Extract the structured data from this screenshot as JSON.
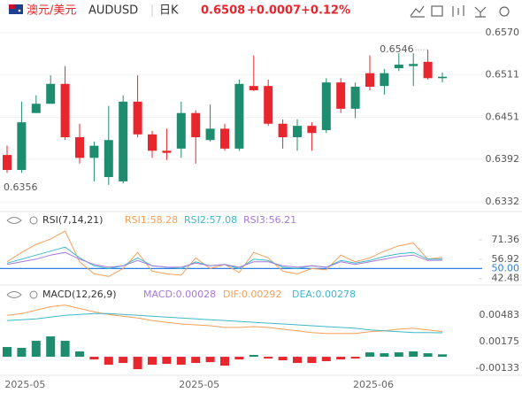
{
  "header": {
    "pair_cn": "澳元/美元",
    "pair": "AUDUSD",
    "period": "日K",
    "price": "0.6508",
    "change": "+0.0007",
    "change_pct": "+0.12%"
  },
  "chart_data": [
    {
      "type": "candlestick",
      "up_color": "#1e8c6e",
      "down_color": "#e8262d",
      "categories": [
        null,
        "2025-05",
        null,
        null,
        null,
        null,
        null,
        null,
        null,
        null,
        null,
        null,
        null,
        "2025-05",
        null,
        null,
        null,
        null,
        null,
        null,
        null,
        null,
        null,
        null,
        null,
        "2025-06",
        null,
        null,
        null,
        null,
        null
      ],
      "candles": [
        {
          "open": 0.6398,
          "high": 0.6411,
          "low": 0.6373,
          "close": 0.6377
        },
        {
          "open": 0.6377,
          "high": 0.6473,
          "low": 0.6373,
          "close": 0.6444
        },
        {
          "open": 0.6457,
          "high": 0.6482,
          "low": 0.6457,
          "close": 0.647
        },
        {
          "open": 0.647,
          "high": 0.651,
          "low": 0.647,
          "close": 0.6498
        },
        {
          "open": 0.6498,
          "high": 0.6523,
          "low": 0.6419,
          "close": 0.6423
        },
        {
          "open": 0.6423,
          "high": 0.6442,
          "low": 0.6386,
          "close": 0.6394
        },
        {
          "open": 0.6394,
          "high": 0.6417,
          "low": 0.6361,
          "close": 0.6411
        },
        {
          "open": 0.6367,
          "high": 0.6467,
          "low": 0.6356,
          "close": 0.6419
        },
        {
          "open": 0.6361,
          "high": 0.6482,
          "low": 0.6358,
          "close": 0.6473
        },
        {
          "open": 0.6473,
          "high": 0.651,
          "low": 0.6423,
          "close": 0.6427
        },
        {
          "open": 0.6427,
          "high": 0.6432,
          "low": 0.6394,
          "close": 0.6404
        },
        {
          "open": 0.6404,
          "high": 0.6435,
          "low": 0.6391,
          "close": 0.6401
        },
        {
          "open": 0.6407,
          "high": 0.6473,
          "low": 0.6394,
          "close": 0.6457
        },
        {
          "open": 0.6457,
          "high": 0.6461,
          "low": 0.6386,
          "close": 0.6423
        },
        {
          "open": 0.6419,
          "high": 0.6469,
          "low": 0.6417,
          "close": 0.6435
        },
        {
          "open": 0.6435,
          "high": 0.6442,
          "low": 0.6404,
          "close": 0.6407
        },
        {
          "open": 0.6407,
          "high": 0.6504,
          "low": 0.6404,
          "close": 0.6498
        },
        {
          "open": 0.6495,
          "high": 0.6538,
          "low": 0.6488,
          "close": 0.6489
        },
        {
          "open": 0.6495,
          "high": 0.6504,
          "low": 0.6439,
          "close": 0.6442
        },
        {
          "open": 0.6442,
          "high": 0.6448,
          "low": 0.6407,
          "close": 0.6423
        },
        {
          "open": 0.6423,
          "high": 0.6448,
          "low": 0.6404,
          "close": 0.6439
        },
        {
          "open": 0.6439,
          "high": 0.6444,
          "low": 0.6404,
          "close": 0.6429
        },
        {
          "open": 0.6433,
          "high": 0.6506,
          "low": 0.6429,
          "close": 0.65
        },
        {
          "open": 0.65,
          "high": 0.6506,
          "low": 0.6457,
          "close": 0.6463
        },
        {
          "open": 0.6463,
          "high": 0.65,
          "low": 0.645,
          "close": 0.6494
        },
        {
          "open": 0.6513,
          "high": 0.6538,
          "low": 0.6489,
          "close": 0.6494
        },
        {
          "open": 0.6495,
          "high": 0.6519,
          "low": 0.6483,
          "close": 0.6513
        },
        {
          "open": 0.652,
          "high": 0.6541,
          "low": 0.6516,
          "close": 0.6525
        },
        {
          "open": 0.6523,
          "high": 0.6541,
          "low": 0.6495,
          "close": 0.6526
        },
        {
          "open": 0.6529,
          "high": 0.6546,
          "low": 0.6504,
          "close": 0.6506
        },
        {
          "open": 0.6506,
          "high": 0.6514,
          "low": 0.65,
          "close": 0.6508
        }
      ],
      "ylim": [
        0.6321,
        0.6591
      ],
      "yticks": [
        {
          "value": 0.657,
          "label": "0.6570"
        },
        0.6511,
        0.6451,
        0.6392,
        0.6332
      ],
      "high_label": "0.6546",
      "low_label": "0.6356",
      "grid": true
    },
    {
      "type": "line",
      "title": "RSI(7,14,21)",
      "ylim": [
        39,
        80
      ],
      "yticks": [
        71.36,
        56.92,
        {
          "value": 50,
          "label": "50.00"
        },
        42.48
      ],
      "reference_line": 50,
      "reference_color": "#2f7de1",
      "series": [
        {
          "name": "RSI1:58.28",
          "color": "#f5a05a",
          "values": [
            55,
            62,
            68,
            72,
            78,
            55,
            46,
            44,
            50,
            62,
            48,
            46,
            45,
            58,
            50,
            53,
            47,
            62,
            58,
            48,
            46,
            50,
            49,
            60,
            55,
            58,
            63,
            67,
            69,
            57,
            58.28
          ]
        },
        {
          "name": "RSI2:57.08",
          "color": "#3fb8c7",
          "values": [
            54,
            57,
            60,
            63,
            66,
            58,
            52,
            50,
            52,
            58,
            52,
            51,
            50,
            55,
            52,
            53,
            50,
            57,
            56,
            51,
            50,
            52,
            51,
            56,
            54,
            56,
            59,
            61,
            62,
            57,
            57.08
          ]
        },
        {
          "name": "RSI3:56.21",
          "color": "#a77ad9",
          "values": [
            53,
            55,
            57,
            60,
            62,
            57,
            53,
            51,
            52,
            56,
            52,
            51,
            51,
            54,
            52,
            53,
            51,
            55,
            55,
            52,
            51,
            52,
            51,
            55,
            53,
            55,
            57,
            59,
            60,
            56,
            56.21
          ]
        }
      ]
    },
    {
      "type": "macd",
      "title": "MACD(12,26,9)",
      "ylim": [
        -0.00225,
        0.00647
      ],
      "yticks": [
        0.00483,
        0.00175,
        -0.00133
      ],
      "up_color": "#1e8c6e",
      "down_color": "#e8262d",
      "series": [
        {
          "name": "MACD:0.00028",
          "color": "#a77ad9",
          "kind": "bar",
          "values": [
            0.00113,
            0.00103,
            0.00185,
            0.00236,
            0.00185,
            0.00062,
            -0.00031,
            -0.00092,
            -0.00072,
            -0.00144,
            -0.00092,
            -0.00082,
            -0.00092,
            -0.00072,
            -0.00062,
            -0.00103,
            -0.00031,
            0.00021,
            -0.00021,
            -0.00041,
            -0.00072,
            -0.00072,
            -0.00051,
            -0.00031,
            -0.00021,
            0.00051,
            0.00041,
            0.00051,
            0.00062,
            0.00041,
            0.00028
          ]
        },
        {
          "name": "DIF:0.00292",
          "color": "#f5a05a",
          "kind": "line",
          "values": [
            0.0048,
            0.005,
            0.0054,
            0.0058,
            0.006,
            0.0056,
            0.0052,
            0.0049,
            0.0047,
            0.0045,
            0.0042,
            0.004,
            0.0038,
            0.0037,
            0.0036,
            0.0034,
            0.0034,
            0.0035,
            0.0034,
            0.0032,
            0.003,
            0.0028,
            0.0027,
            0.0027,
            0.0027,
            0.0029,
            0.003,
            0.0032,
            0.0033,
            0.0031,
            0.00292
          ]
        },
        {
          "name": "DEA:0.00278",
          "color": "#3fb8c7",
          "kind": "line",
          "values": [
            0.0042,
            0.0043,
            0.0044,
            0.0046,
            0.0048,
            0.0049,
            0.005,
            0.005,
            0.0049,
            0.0048,
            0.0047,
            0.0046,
            0.0045,
            0.0044,
            0.0043,
            0.0042,
            0.0041,
            0.004,
            0.0039,
            0.0038,
            0.0037,
            0.0036,
            0.0035,
            0.0034,
            0.0033,
            0.0031,
            0.003,
            0.0029,
            0.0028,
            0.0028,
            0.00278
          ]
        }
      ]
    }
  ]
}
